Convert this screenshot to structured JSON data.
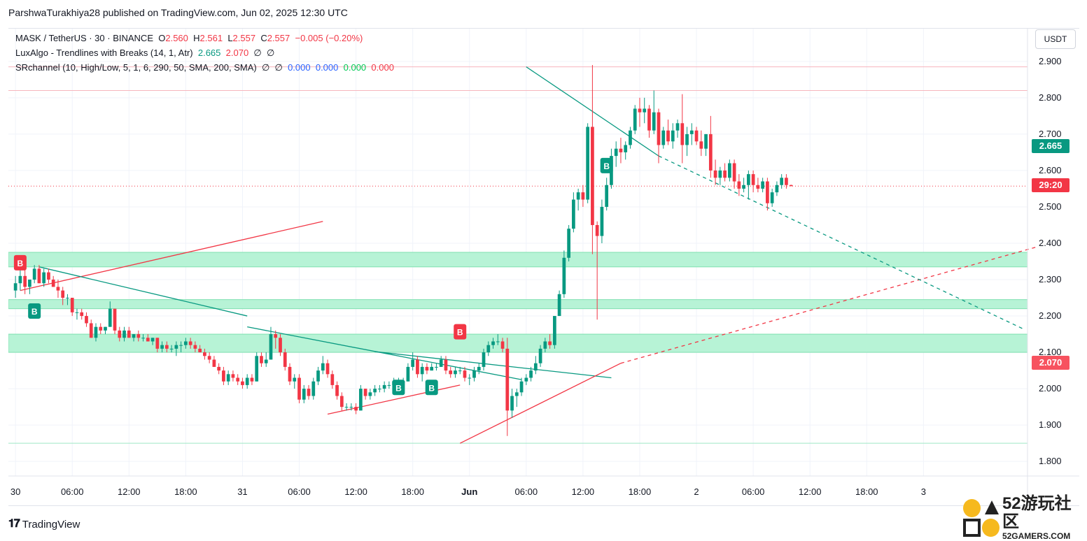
{
  "credit": "ParshwaTurakhiya28 published on TradingView.com, Jun 02, 2025 12:30 UTC",
  "legend": {
    "symbol": "MASK / TetherUS · 30 · BINANCE",
    "o_label": "O",
    "o": "2.560",
    "h_label": "H",
    "h": "2.561",
    "l_label": "L",
    "l": "2.557",
    "c_label": "C",
    "c": "2.557",
    "change": "−0.005 (−0.20%)",
    "lux": "LuxAlgo - Trendlines with Breaks (14, 1, Atr)",
    "lux_v1": "2.665",
    "lux_v2": "2.070",
    "lux_e1": "∅",
    "lux_e2": "∅",
    "sr": "SRchannel (10, High/Low, 5, 1, 6, 290, 50, SMA, 200, SMA)",
    "sr_e1": "∅",
    "sr_e2": "∅",
    "sr_v1": "0.000",
    "sr_v2": "0.000",
    "sr_v3": "0.000",
    "sr_v4": "0.000"
  },
  "axis_currency": "USDT",
  "tags": {
    "upper": "2.665",
    "countdown": "29:20",
    "lower": "2.070"
  },
  "brand": "TradingView",
  "watermark": {
    "big": "52游玩社区",
    "small": "52GAMERS.COM"
  },
  "colors": {
    "up": "#089981",
    "down": "#f23645",
    "zone": "#b7f3d6",
    "zone_border": "#7fe0b0"
  },
  "chart_data": {
    "type": "candlestick",
    "title": "MASK / TetherUS · 30 · BINANCE",
    "ylabel": "USDT",
    "ylim": [
      1.76,
      2.99
    ],
    "yticks": [
      "1.800",
      "1.900",
      "2.000",
      "2.100",
      "2.200",
      "2.300",
      "2.400",
      "2.500",
      "2.600",
      "2.700",
      "2.800",
      "2.900"
    ],
    "xticks": [
      "30",
      "06:00",
      "12:00",
      "18:00",
      "31",
      "06:00",
      "12:00",
      "18:00",
      "Jun",
      "06:00",
      "12:00",
      "18:00",
      "2",
      "06:00",
      "12:00",
      "18:00",
      "3"
    ],
    "xtick_bars": [
      0,
      12,
      24,
      36,
      48,
      60,
      72,
      84,
      96,
      108,
      120,
      132,
      144,
      156,
      168,
      180,
      192
    ],
    "bar_range": [
      -1.5,
      214
    ],
    "ohlc": [
      [
        2.27,
        2.31,
        2.25,
        2.29
      ],
      [
        2.29,
        2.33,
        2.27,
        2.31
      ],
      [
        2.31,
        2.34,
        2.26,
        2.28
      ],
      [
        2.28,
        2.3,
        2.26,
        2.3
      ],
      [
        2.3,
        2.34,
        2.29,
        2.33
      ],
      [
        2.33,
        2.34,
        2.29,
        2.29
      ],
      [
        2.29,
        2.33,
        2.28,
        2.32
      ],
      [
        2.32,
        2.33,
        2.29,
        2.3
      ],
      [
        2.3,
        2.31,
        2.28,
        2.28
      ],
      [
        2.28,
        2.3,
        2.25,
        2.27
      ],
      [
        2.27,
        2.28,
        2.23,
        2.25
      ],
      [
        2.25,
        2.26,
        2.23,
        2.25
      ],
      [
        2.25,
        2.25,
        2.2,
        2.21
      ],
      [
        2.21,
        2.22,
        2.19,
        2.21
      ],
      [
        2.21,
        2.22,
        2.19,
        2.2
      ],
      [
        2.2,
        2.21,
        2.17,
        2.18
      ],
      [
        2.18,
        2.19,
        2.14,
        2.14
      ],
      [
        2.14,
        2.18,
        2.13,
        2.17
      ],
      [
        2.17,
        2.18,
        2.15,
        2.16
      ],
      [
        2.16,
        2.17,
        2.15,
        2.17
      ],
      [
        2.17,
        2.24,
        2.17,
        2.22
      ],
      [
        2.22,
        2.22,
        2.15,
        2.16
      ],
      [
        2.16,
        2.17,
        2.13,
        2.14
      ],
      [
        2.14,
        2.17,
        2.13,
        2.16
      ],
      [
        2.16,
        2.17,
        2.14,
        2.14
      ],
      [
        2.14,
        2.15,
        2.13,
        2.15
      ],
      [
        2.15,
        2.16,
        2.13,
        2.14
      ],
      [
        2.14,
        2.15,
        2.13,
        2.14
      ],
      [
        2.14,
        2.15,
        2.13,
        2.13
      ],
      [
        2.13,
        2.14,
        2.12,
        2.14
      ],
      [
        2.14,
        2.14,
        2.1,
        2.11
      ],
      [
        2.11,
        2.13,
        2.1,
        2.12
      ],
      [
        2.12,
        2.13,
        2.1,
        2.11
      ],
      [
        2.11,
        2.12,
        2.1,
        2.11
      ],
      [
        2.11,
        2.13,
        2.09,
        2.12
      ],
      [
        2.12,
        2.13,
        2.1,
        2.12
      ],
      [
        2.12,
        2.14,
        2.11,
        2.13
      ],
      [
        2.13,
        2.14,
        2.11,
        2.12
      ],
      [
        2.12,
        2.13,
        2.1,
        2.11
      ],
      [
        2.11,
        2.12,
        2.1,
        2.1
      ],
      [
        2.1,
        2.11,
        2.08,
        2.09
      ],
      [
        2.09,
        2.1,
        2.07,
        2.08
      ],
      [
        2.08,
        2.09,
        2.06,
        2.06
      ],
      [
        2.06,
        2.07,
        2.04,
        2.05
      ],
      [
        2.05,
        2.06,
        2.01,
        2.02
      ],
      [
        2.02,
        2.05,
        2.01,
        2.04
      ],
      [
        2.04,
        2.05,
        2.02,
        2.03
      ],
      [
        2.03,
        2.04,
        2.01,
        2.02
      ],
      [
        2.02,
        2.03,
        2.0,
        2.01
      ],
      [
        2.01,
        2.04,
        2.0,
        2.03
      ],
      [
        2.03,
        2.04,
        2.01,
        2.02
      ],
      [
        2.02,
        2.1,
        2.02,
        2.09
      ],
      [
        2.09,
        2.1,
        2.06,
        2.07
      ],
      [
        2.07,
        2.1,
        2.06,
        2.08
      ],
      [
        2.08,
        2.17,
        2.08,
        2.15
      ],
      [
        2.15,
        2.16,
        2.11,
        2.14
      ],
      [
        2.14,
        2.15,
        2.09,
        2.1
      ],
      [
        2.1,
        2.11,
        2.05,
        2.06
      ],
      [
        2.06,
        2.07,
        2.01,
        2.02
      ],
      [
        2.02,
        2.04,
        2.0,
        2.03
      ],
      [
        2.03,
        2.04,
        1.96,
        1.97
      ],
      [
        1.97,
        2.01,
        1.96,
        2.0
      ],
      [
        2.0,
        2.01,
        1.97,
        1.98
      ],
      [
        1.98,
        2.03,
        1.97,
        2.02
      ],
      [
        2.02,
        2.06,
        2.01,
        2.05
      ],
      [
        2.05,
        2.09,
        2.04,
        2.07
      ],
      [
        2.07,
        2.08,
        2.03,
        2.04
      ],
      [
        2.04,
        2.05,
        2.0,
        2.01
      ],
      [
        2.01,
        2.02,
        1.97,
        1.98
      ],
      [
        1.98,
        1.99,
        1.94,
        1.95
      ],
      [
        1.95,
        1.96,
        1.94,
        1.95
      ],
      [
        1.95,
        1.96,
        1.94,
        1.95
      ],
      [
        1.95,
        1.96,
        1.93,
        1.94
      ],
      [
        1.94,
        2.01,
        1.94,
        2.0
      ],
      [
        2.0,
        2.0,
        1.97,
        1.98
      ],
      [
        1.98,
        2.0,
        1.97,
        1.99
      ],
      [
        1.99,
        2.01,
        1.98,
        2.0
      ],
      [
        2.0,
        2.01,
        1.99,
        2.0
      ],
      [
        2.0,
        2.02,
        1.99,
        2.01
      ],
      [
        2.01,
        2.02,
        2.0,
        2.01
      ],
      [
        2.01,
        2.03,
        2.0,
        2.02
      ],
      [
        2.02,
        2.03,
        2.01,
        2.02
      ],
      [
        2.02,
        2.03,
        2.01,
        2.02
      ],
      [
        2.02,
        2.07,
        2.02,
        2.06
      ],
      [
        2.06,
        2.1,
        2.05,
        2.08
      ],
      [
        2.08,
        2.09,
        2.03,
        2.04
      ],
      [
        2.04,
        2.07,
        2.02,
        2.06
      ],
      [
        2.06,
        2.07,
        2.04,
        2.05
      ],
      [
        2.05,
        2.07,
        2.05,
        2.06
      ],
      [
        2.06,
        2.07,
        2.05,
        2.06
      ],
      [
        2.06,
        2.09,
        2.06,
        2.08
      ],
      [
        2.08,
        2.09,
        2.04,
        2.05
      ],
      [
        2.05,
        2.06,
        2.03,
        2.04
      ],
      [
        2.04,
        2.06,
        2.03,
        2.05
      ],
      [
        2.05,
        2.06,
        2.04,
        2.05
      ],
      [
        2.05,
        2.06,
        2.02,
        2.03
      ],
      [
        2.03,
        2.04,
        2.01,
        2.03
      ],
      [
        2.03,
        2.06,
        2.02,
        2.05
      ],
      [
        2.05,
        2.07,
        2.04,
        2.06
      ],
      [
        2.06,
        2.11,
        2.05,
        2.1
      ],
      [
        2.1,
        2.13,
        2.09,
        2.12
      ],
      [
        2.12,
        2.14,
        2.11,
        2.13
      ],
      [
        2.13,
        2.15,
        2.12,
        2.13
      ],
      [
        2.13,
        2.14,
        2.1,
        2.11
      ],
      [
        2.11,
        2.14,
        1.87,
        1.94
      ],
      [
        1.94,
        2.0,
        1.92,
        1.98
      ],
      [
        1.98,
        2.0,
        1.95,
        1.99
      ],
      [
        1.99,
        2.03,
        1.98,
        2.02
      ],
      [
        2.02,
        2.04,
        2.01,
        2.03
      ],
      [
        2.03,
        2.06,
        2.02,
        2.05
      ],
      [
        2.05,
        2.09,
        2.04,
        2.07
      ],
      [
        2.07,
        2.12,
        2.06,
        2.11
      ],
      [
        2.11,
        2.14,
        2.1,
        2.13
      ],
      [
        2.13,
        2.15,
        2.11,
        2.12
      ],
      [
        2.12,
        2.2,
        2.11,
        2.2
      ],
      [
        2.2,
        2.27,
        2.2,
        2.26
      ],
      [
        2.26,
        2.38,
        2.25,
        2.36
      ],
      [
        2.36,
        2.45,
        2.35,
        2.44
      ],
      [
        2.44,
        2.54,
        2.43,
        2.52
      ],
      [
        2.52,
        2.55,
        2.49,
        2.54
      ],
      [
        2.54,
        2.56,
        2.5,
        2.52
      ],
      [
        2.52,
        2.73,
        2.51,
        2.72
      ],
      [
        2.72,
        2.89,
        2.37,
        2.45
      ],
      [
        2.45,
        2.46,
        2.19,
        2.42
      ],
      [
        2.42,
        2.52,
        2.4,
        2.5
      ],
      [
        2.5,
        2.58,
        2.49,
        2.56
      ],
      [
        2.56,
        2.66,
        2.55,
        2.64
      ],
      [
        2.64,
        2.68,
        2.61,
        2.66
      ],
      [
        2.66,
        2.69,
        2.62,
        2.65
      ],
      [
        2.65,
        2.68,
        2.63,
        2.67
      ],
      [
        2.67,
        2.72,
        2.66,
        2.71
      ],
      [
        2.71,
        2.78,
        2.7,
        2.77
      ],
      [
        2.77,
        2.8,
        2.72,
        2.76
      ],
      [
        2.76,
        2.8,
        2.73,
        2.77
      ],
      [
        2.77,
        2.78,
        2.69,
        2.71
      ],
      [
        2.71,
        2.82,
        2.7,
        2.76
      ],
      [
        2.76,
        2.77,
        2.62,
        2.67
      ],
      [
        2.67,
        2.72,
        2.66,
        2.71
      ],
      [
        2.71,
        2.74,
        2.67,
        2.68
      ],
      [
        2.68,
        2.73,
        2.66,
        2.71
      ],
      [
        2.71,
        2.74,
        2.69,
        2.73
      ],
      [
        2.73,
        2.81,
        2.62,
        2.67
      ],
      [
        2.67,
        2.72,
        2.64,
        2.7
      ],
      [
        2.7,
        2.73,
        2.67,
        2.71
      ],
      [
        2.71,
        2.72,
        2.67,
        2.68
      ],
      [
        2.68,
        2.71,
        2.64,
        2.66
      ],
      [
        2.66,
        2.7,
        2.64,
        2.7
      ],
      [
        2.7,
        2.75,
        2.58,
        2.6
      ],
      [
        2.6,
        2.63,
        2.56,
        2.58
      ],
      [
        2.58,
        2.61,
        2.56,
        2.6
      ],
      [
        2.6,
        2.62,
        2.57,
        2.58
      ],
      [
        2.58,
        2.63,
        2.57,
        2.62
      ],
      [
        2.62,
        2.63,
        2.55,
        2.57
      ],
      [
        2.57,
        2.59,
        2.53,
        2.55
      ],
      [
        2.55,
        2.58,
        2.54,
        2.56
      ],
      [
        2.56,
        2.6,
        2.52,
        2.59
      ],
      [
        2.59,
        2.6,
        2.54,
        2.56
      ],
      [
        2.56,
        2.58,
        2.54,
        2.55
      ],
      [
        2.55,
        2.58,
        2.54,
        2.57
      ],
      [
        2.57,
        2.58,
        2.49,
        2.51
      ],
      [
        2.51,
        2.55,
        2.5,
        2.54
      ],
      [
        2.54,
        2.57,
        2.53,
        2.56
      ],
      [
        2.56,
        2.59,
        2.55,
        2.58
      ],
      [
        2.58,
        2.59,
        2.55,
        2.56
      ],
      [
        2.56,
        2.561,
        2.557,
        2.557
      ]
    ],
    "sr_zones": [
      [
        2.335,
        2.375
      ],
      [
        2.22,
        2.245
      ],
      [
        2.1,
        2.15
      ]
    ],
    "sr_lines": [
      {
        "y": 2.885,
        "color": "#f7b5bd"
      },
      {
        "y": 2.82,
        "color": "#f7b5bd"
      },
      {
        "y": 1.85,
        "color": "#9fe8c5"
      },
      {
        "y": 2.557,
        "color": "#f23645",
        "dash": true
      }
    ],
    "trendlines": [
      {
        "x1": 1,
        "y1": 2.27,
        "x2": 65,
        "y2": 2.46,
        "color": "#f23645"
      },
      {
        "x1": 5,
        "y1": 2.335,
        "x2": 49,
        "y2": 2.2,
        "color": "#089981"
      },
      {
        "x1": 49,
        "y1": 2.17,
        "x2": 107,
        "y2": 2.025,
        "color": "#089981"
      },
      {
        "x1": 76,
        "y1": 2.102,
        "x2": 126,
        "y2": 2.03,
        "color": "#089981"
      },
      {
        "x1": 66,
        "y1": 1.93,
        "x2": 94,
        "y2": 2.01,
        "color": "#f23645"
      },
      {
        "x1": 94,
        "y1": 1.85,
        "x2": 128,
        "y2": 2.07,
        "color": "#f23645"
      },
      {
        "x1": 128,
        "y1": 2.07,
        "x2": 216,
        "y2": 2.39,
        "color": "#f23645",
        "dash": true
      },
      {
        "x1": 108,
        "y1": 2.885,
        "x2": 136,
        "y2": 2.64,
        "color": "#089981"
      },
      {
        "x1": 136,
        "y1": 2.64,
        "x2": 213,
        "y2": 2.165,
        "color": "#089981",
        "dash": true
      }
    ],
    "signals": [
      {
        "bar": 1,
        "price": 2.31,
        "text": "B",
        "color": "#f23645",
        "side": "above"
      },
      {
        "bar": 4,
        "price": 2.25,
        "text": "B",
        "color": "#089981",
        "side": "below"
      },
      {
        "bar": 81,
        "price": 2.04,
        "text": "B",
        "color": "#089981",
        "side": "below"
      },
      {
        "bar": 88,
        "price": 2.04,
        "text": "B",
        "color": "#089981",
        "side": "below"
      },
      {
        "bar": 94,
        "price": 2.12,
        "text": "B",
        "color": "#f23645",
        "side": "above"
      },
      {
        "bar": 125,
        "price": 2.65,
        "text": "B",
        "color": "#089981",
        "side": "below"
      }
    ]
  }
}
